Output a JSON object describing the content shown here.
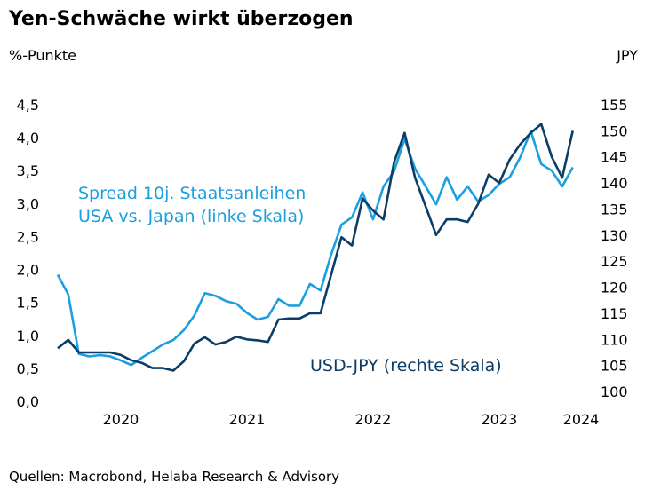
{
  "chart_data": {
    "type": "line",
    "title": "Yen-Schwäche wirkt überzogen",
    "ylabel_left": "%-Punkte",
    "ylabel_right": "JPY",
    "source": "Quellen: Macrobond, Helaba Research & Advisory",
    "ylim_left": [
      0,
      4.5
    ],
    "yticks_left": [
      "0,0",
      "0,5",
      "1,0",
      "1,5",
      "2,0",
      "2,5",
      "3,0",
      "3,5",
      "4,0",
      "4,5"
    ],
    "ylim_right": [
      100,
      155
    ],
    "yticks_right": [
      "100",
      "105",
      "110",
      "115",
      "120",
      "125",
      "130",
      "135",
      "140",
      "145",
      "150",
      "155"
    ],
    "xticks": [
      "2020",
      "2021",
      "2022",
      "2023",
      "2024"
    ],
    "grid": false,
    "x": [
      "2020-01",
      "2020-02",
      "2020-03",
      "2020-04",
      "2020-05",
      "2020-06",
      "2020-07",
      "2020-08",
      "2020-09",
      "2020-10",
      "2020-11",
      "2020-12",
      "2021-01",
      "2021-02",
      "2021-03",
      "2021-04",
      "2021-05",
      "2021-06",
      "2021-07",
      "2021-08",
      "2021-09",
      "2021-10",
      "2021-11",
      "2021-12",
      "2022-01",
      "2022-02",
      "2022-03",
      "2022-04",
      "2022-05",
      "2022-06",
      "2022-07",
      "2022-08",
      "2022-09",
      "2022-10",
      "2022-11",
      "2022-12",
      "2023-01",
      "2023-02",
      "2023-03",
      "2023-04",
      "2023-05",
      "2023-06",
      "2023-07",
      "2023-08",
      "2023-09",
      "2023-10",
      "2023-11",
      "2023-12",
      "2024-01",
      "2024-02"
    ],
    "series": [
      {
        "name": "Spread 10j. Staatsanleihen USA vs. Japan (linke Skala)",
        "axis": "left",
        "color": "#1a9fe0",
        "values": [
          1.92,
          1.62,
          0.72,
          0.68,
          0.7,
          0.68,
          0.62,
          0.55,
          0.66,
          0.76,
          0.86,
          0.93,
          1.08,
          1.3,
          1.64,
          1.6,
          1.52,
          1.48,
          1.34,
          1.24,
          1.28,
          1.55,
          1.45,
          1.45,
          1.78,
          1.68,
          2.22,
          2.68,
          2.79,
          3.17,
          2.76,
          3.26,
          3.49,
          3.98,
          3.53,
          3.26,
          2.99,
          3.4,
          3.06,
          3.26,
          3.03,
          3.13,
          3.3,
          3.4,
          3.7,
          4.1,
          3.6,
          3.5,
          3.26,
          3.55
        ]
      },
      {
        "name": "USD-JPY (rechte Skala)",
        "axis": "right",
        "color": "#0c3d66",
        "values": [
          108.3,
          109.9,
          107.5,
          107.5,
          107.5,
          107.5,
          107.0,
          106.0,
          105.5,
          104.5,
          104.5,
          104.0,
          105.8,
          109.2,
          110.4,
          109.0,
          109.5,
          110.5,
          110.0,
          109.8,
          109.5,
          113.8,
          114.0,
          114.0,
          115.0,
          115.0,
          122.3,
          129.6,
          128.0,
          137.0,
          134.7,
          133.0,
          144.0,
          149.6,
          141.0,
          135.5,
          130.0,
          133.0,
          133.0,
          132.5,
          136.0,
          141.6,
          140.0,
          144.5,
          147.4,
          149.6,
          151.3,
          145.0,
          141.0,
          150.0
        ]
      }
    ]
  }
}
